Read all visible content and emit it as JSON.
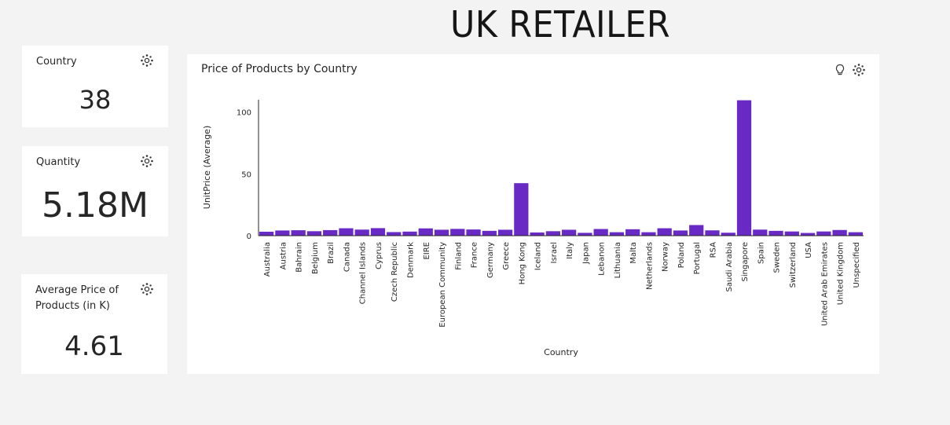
{
  "page": {
    "title": "UK RETAILER"
  },
  "kpis": {
    "country": {
      "label": "Country",
      "value": "38"
    },
    "quantity": {
      "label": "Quantity",
      "value": "5.18M"
    },
    "avg_price": {
      "label": "Average Price of Products (in K)",
      "value": "4.61"
    }
  },
  "icons": {
    "settings": "gear-icon",
    "insight": "lightbulb-icon"
  },
  "colors": {
    "bar": "#6929c4",
    "background": "#f3f3f3",
    "card": "#ffffff"
  },
  "chart_data": {
    "type": "bar",
    "title": "Price of Products by Country",
    "xlabel": "Country",
    "ylabel": "UnitPrice (Average)",
    "ylim": [
      0,
      110
    ],
    "yticks": [
      0,
      50,
      100
    ],
    "categories": [
      "Australia",
      "Austria",
      "Bahrain",
      "Belgium",
      "Brazil",
      "Canada",
      "Channel Islands",
      "Cyprus",
      "Czech Republic",
      "Denmark",
      "EIRE",
      "European Community",
      "Finland",
      "France",
      "Germany",
      "Greece",
      "Hong Kong",
      "Iceland",
      "Israel",
      "Italy",
      "Japan",
      "Lebanon",
      "Lithuania",
      "Malta",
      "Netherlands",
      "Norway",
      "Poland",
      "Portugal",
      "RSA",
      "Saudi Arabia",
      "Singapore",
      "Spain",
      "Sweden",
      "Switzerland",
      "USA",
      "United Arab Emirates",
      "United Kingdom",
      "Unspecified"
    ],
    "values": [
      3.2,
      4.2,
      4.4,
      3.6,
      4.5,
      6.0,
      4.9,
      6.1,
      2.9,
      3.3,
      5.9,
      4.8,
      5.5,
      5.0,
      3.9,
      4.8,
      42.5,
      2.6,
      3.6,
      4.8,
      2.3,
      5.4,
      2.8,
      5.2,
      2.8,
      6.0,
      4.2,
      8.6,
      4.3,
      2.4,
      109.6,
      4.9,
      3.9,
      3.4,
      2.2,
      3.4,
      4.6,
      2.8
    ]
  }
}
